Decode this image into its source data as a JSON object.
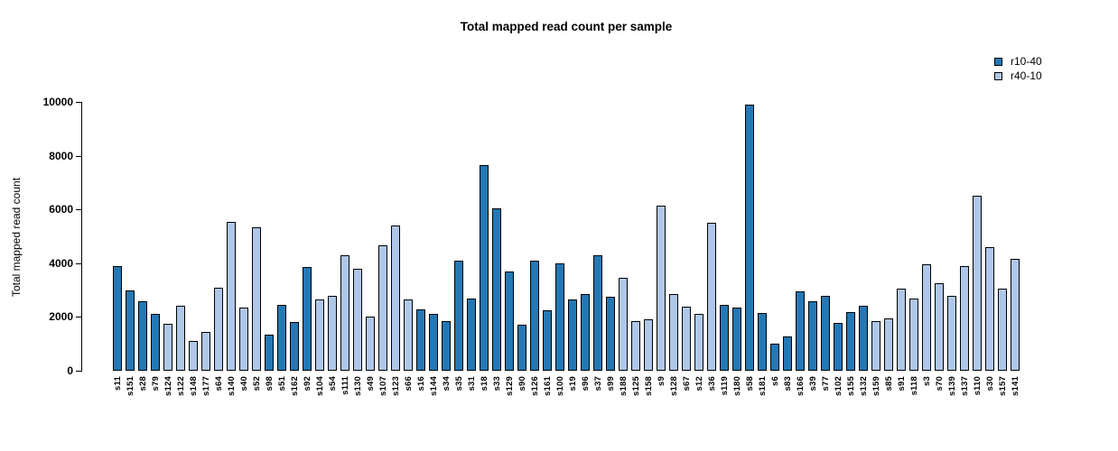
{
  "title": "Total mapped read count per sample",
  "legend": [
    {
      "label": "r10-40",
      "color": "#2378b5"
    },
    {
      "label": "r40-10",
      "color": "#afc7e8"
    }
  ],
  "chart_data": {
    "type": "bar",
    "title": "Total mapped read count per sample",
    "xlabel": "",
    "ylabel": "Total mapped read count",
    "ylim": [
      0,
      10000
    ],
    "yticks": [
      0,
      2000,
      4000,
      6000,
      8000,
      10000
    ],
    "grid": false,
    "legend_position": "top-right",
    "colors": {
      "r10-40": "#2378b5",
      "r40-10": "#afc7e8"
    },
    "bar_border_color": "#000000",
    "categories": [
      "s11",
      "s151",
      "s28",
      "s79",
      "s124",
      "s122",
      "s148",
      "s177",
      "s64",
      "s140",
      "s40",
      "s52",
      "s98",
      "s51",
      "s162",
      "s92",
      "s104",
      "s54",
      "s111",
      "s130",
      "s49",
      "s107",
      "s123",
      "s66",
      "s16",
      "s144",
      "s34",
      "s35",
      "s31",
      "s18",
      "s33",
      "s129",
      "s90",
      "s126",
      "s161",
      "s100",
      "s19",
      "s96",
      "s37",
      "s99",
      "s188",
      "s125",
      "s158",
      "s9",
      "s128",
      "s67",
      "s12",
      "s36",
      "s119",
      "s180",
      "s58",
      "s181",
      "s6",
      "s83",
      "s166",
      "s39",
      "s77",
      "s102",
      "s155",
      "s132",
      "s159",
      "s85",
      "s91",
      "s118",
      "s3",
      "s70",
      "s139",
      "s137",
      "s110",
      "s30",
      "s157",
      "s141"
    ],
    "values": [
      3900,
      3000,
      2600,
      2100,
      1750,
      2400,
      1100,
      1450,
      3100,
      5550,
      2350,
      5350,
      1350,
      2450,
      1800,
      3850,
      2650,
      2800,
      4300,
      3800,
      2000,
      4650,
      5400,
      2650,
      2280,
      2100,
      1850,
      4100,
      2700,
      7650,
      6050,
      3700,
      1700,
      4100,
      2250,
      4000,
      2650,
      2850,
      4300,
      2750,
      3450,
      1850,
      1900,
      6150,
      2850,
      2380,
      2100,
      5500,
      2450,
      2350,
      9900,
      2150,
      1000,
      1280,
      2950,
      2600,
      2780,
      1770,
      2180,
      2400,
      1850,
      1950,
      3050,
      2700,
      3950,
      3250,
      2800,
      3900,
      6500,
      4600,
      3050,
      4150
    ],
    "groups": [
      "r10-40",
      "r10-40",
      "r10-40",
      "r10-40",
      "r40-10",
      "r40-10",
      "r40-10",
      "r40-10",
      "r40-10",
      "r40-10",
      "r40-10",
      "r40-10",
      "r10-40",
      "r10-40",
      "r10-40",
      "r10-40",
      "r40-10",
      "r40-10",
      "r40-10",
      "r40-10",
      "r40-10",
      "r40-10",
      "r40-10",
      "r40-10",
      "r10-40",
      "r10-40",
      "r10-40",
      "r10-40",
      "r10-40",
      "r10-40",
      "r10-40",
      "r10-40",
      "r10-40",
      "r10-40",
      "r10-40",
      "r10-40",
      "r10-40",
      "r10-40",
      "r10-40",
      "r10-40",
      "r40-10",
      "r40-10",
      "r40-10",
      "r40-10",
      "r40-10",
      "r40-10",
      "r40-10",
      "r40-10",
      "r10-40",
      "r10-40",
      "r10-40",
      "r10-40",
      "r10-40",
      "r10-40",
      "r10-40",
      "r10-40",
      "r10-40",
      "r10-40",
      "r10-40",
      "r10-40",
      "r40-10",
      "r40-10",
      "r40-10",
      "r40-10",
      "r40-10",
      "r40-10",
      "r40-10",
      "r40-10",
      "r40-10",
      "r40-10",
      "r40-10",
      "r40-10"
    ]
  }
}
